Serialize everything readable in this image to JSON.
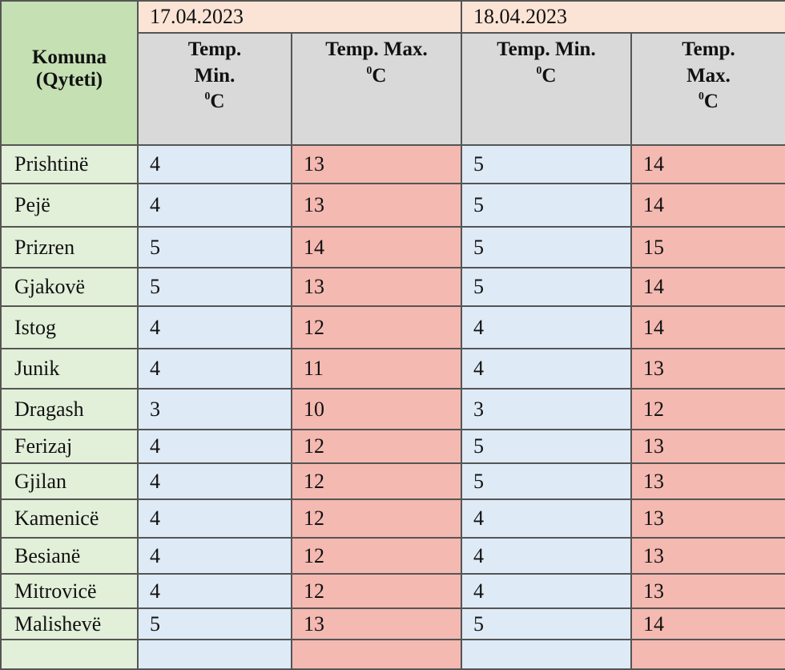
{
  "header": {
    "komuna": "Komuna",
    "qyteti": "(Qyteti)",
    "dates": [
      "17.04.2023",
      "18.04.2023"
    ],
    "temp": "Temp.",
    "min": "Min.",
    "max": "Max.",
    "temp_min": "Temp. Min.",
    "temp_max": "Temp. Max.",
    "deg_sup": "0",
    "unit": "C"
  },
  "colors": {
    "name_header": "#c5e0b3",
    "name_cells": "#e2efd9",
    "date_row": "#fbe4d5",
    "sub_header": "#d9d9d9",
    "min_cells": "#deeaf6",
    "max_cells": "#f4b9b1"
  },
  "rows": [
    {
      "name": "Prishtinë",
      "v": [
        "4",
        "13",
        "5",
        "14"
      ]
    },
    {
      "name": "Pejë",
      "v": [
        "4",
        "13",
        "5",
        "14"
      ]
    },
    {
      "name": "Prizren",
      "v": [
        "5",
        "14",
        "5",
        "15"
      ]
    },
    {
      "name": "Gjakovë",
      "v": [
        "5",
        "13",
        "5",
        "14"
      ]
    },
    {
      "name": "Istog",
      "v": [
        "4",
        "12",
        "4",
        "14"
      ]
    },
    {
      "name": "Junik",
      "v": [
        "4",
        "11",
        "4",
        "13"
      ]
    },
    {
      "name": "Dragash",
      "v": [
        "3",
        "10",
        "3",
        "12"
      ]
    },
    {
      "name": "Ferizaj",
      "v": [
        "4",
        "12",
        "5",
        "13"
      ]
    },
    {
      "name": "Gjilan",
      "v": [
        "4",
        "12",
        "5",
        "13"
      ]
    },
    {
      "name": "Kamenicë",
      "v": [
        "4",
        "12",
        "4",
        "13"
      ]
    },
    {
      "name": "Besianë",
      "v": [
        "4",
        "12",
        "4",
        "13"
      ]
    },
    {
      "name": "Mitrovicë",
      "v": [
        "4",
        "12",
        "4",
        "13"
      ]
    },
    {
      "name": "Malishevë",
      "v": [
        "5",
        "13",
        "5",
        "14"
      ]
    }
  ]
}
